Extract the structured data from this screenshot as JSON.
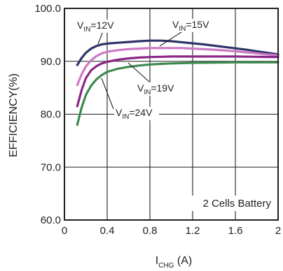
{
  "chart_data": {
    "type": "line",
    "title": "",
    "xlabel": {
      "main": "I",
      "sub": "CHG",
      "suffix": " (A)"
    },
    "ylabel": "EFFICIENCY(%)",
    "xlim": [
      0,
      2
    ],
    "ylim": [
      60,
      100
    ],
    "x_ticks": [
      0,
      0.4,
      0.8,
      1.2,
      1.6,
      2
    ],
    "x_tick_labels": [
      "0",
      "0.4",
      "0.8",
      "1.2",
      "1.6",
      "2"
    ],
    "y_ticks": [
      60,
      70,
      80,
      90,
      100
    ],
    "y_tick_labels": [
      "60.0",
      "70.0",
      "80.0",
      "90.0",
      "100.0"
    ],
    "grid": true,
    "note": "2 Cells Battery",
    "series": [
      {
        "name": "VIN=12V",
        "label_parts": [
          "V",
          "IN",
          "=12V"
        ],
        "color": "#2e3468",
        "x": [
          0.12,
          0.16,
          0.2,
          0.25,
          0.3,
          0.35,
          0.4,
          0.5,
          0.6,
          0.7,
          0.8,
          0.9,
          1.0,
          1.1,
          1.2,
          1.3,
          1.4,
          1.5,
          1.6,
          1.7,
          1.8,
          1.9,
          2.0
        ],
        "values": [
          89.3,
          90.6,
          91.6,
          92.4,
          92.9,
          93.2,
          93.35,
          93.5,
          93.65,
          93.8,
          93.9,
          93.9,
          93.8,
          93.6,
          93.4,
          93.2,
          92.95,
          92.7,
          92.45,
          92.2,
          91.9,
          91.6,
          91.3
        ]
      },
      {
        "name": "VIN=15V",
        "label_parts": [
          "V",
          "IN",
          "=15V"
        ],
        "color": "#cc79c5",
        "x": [
          0.12,
          0.16,
          0.2,
          0.25,
          0.3,
          0.35,
          0.4,
          0.5,
          0.6,
          0.7,
          0.8,
          0.9,
          1.0,
          1.1,
          1.2,
          1.4,
          1.6,
          1.8,
          2.0
        ],
        "values": [
          85.5,
          87.5,
          89.0,
          90.2,
          91.0,
          91.5,
          91.8,
          92.1,
          92.3,
          92.4,
          92.5,
          92.5,
          92.5,
          92.5,
          92.4,
          92.2,
          91.9,
          91.5,
          91.1
        ]
      },
      {
        "name": "VIN=19V",
        "label_parts": [
          "V",
          "IN",
          "=19V"
        ],
        "color": "#8a2686",
        "x": [
          0.12,
          0.16,
          0.2,
          0.25,
          0.3,
          0.35,
          0.4,
          0.5,
          0.6,
          0.7,
          0.8,
          0.9,
          1.0,
          1.2,
          1.4,
          1.6,
          1.8,
          2.0
        ],
        "values": [
          81.5,
          84.5,
          86.8,
          88.3,
          89.1,
          89.6,
          89.9,
          90.3,
          90.55,
          90.7,
          90.8,
          90.85,
          90.9,
          90.9,
          90.9,
          90.9,
          90.85,
          90.8
        ]
      },
      {
        "name": "VIN=24V",
        "label_parts": [
          "V",
          "IN",
          "=24V"
        ],
        "color": "#3d8a4f",
        "x": [
          0.12,
          0.16,
          0.2,
          0.25,
          0.3,
          0.35,
          0.4,
          0.5,
          0.6,
          0.7,
          0.8,
          0.9,
          1.0,
          1.2,
          1.4,
          1.6,
          1.8,
          2.0
        ],
        "values": [
          78.0,
          81.2,
          83.6,
          85.4,
          86.6,
          87.4,
          88.0,
          88.6,
          88.95,
          89.2,
          89.4,
          89.5,
          89.6,
          89.7,
          89.75,
          89.8,
          89.8,
          89.8
        ]
      }
    ]
  }
}
